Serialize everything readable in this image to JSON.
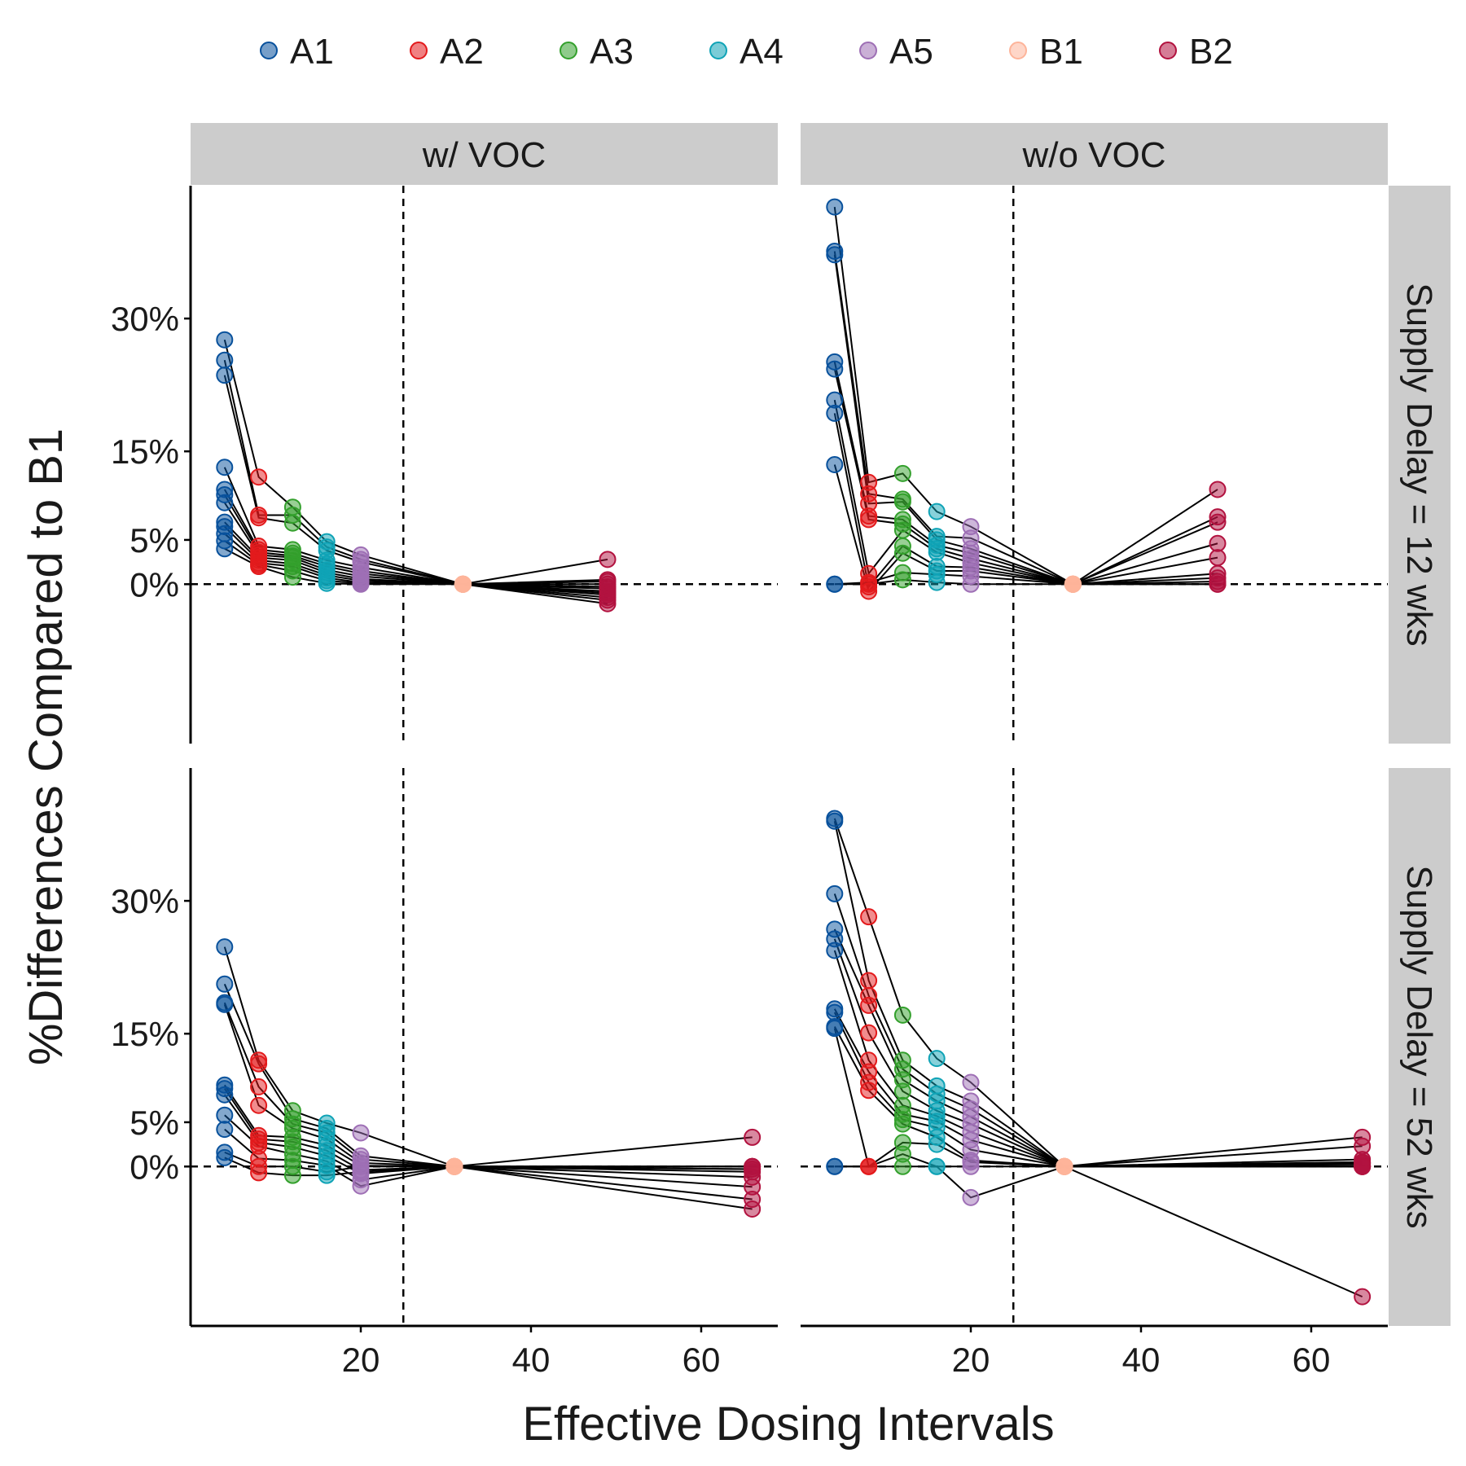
{
  "chart_data": {
    "type": "scatter",
    "xlabel": "Effective Dosing Intervals",
    "ylabel": "%Differences Compared to B1",
    "xlim": [
      0,
      69
    ],
    "ylim": [
      -18,
      45
    ],
    "x_ticks": [
      20,
      40,
      60
    ],
    "y_ticks": [
      0,
      5,
      15,
      30
    ],
    "y_tick_labels": [
      "0%",
      "5%",
      "15%",
      "30%"
    ],
    "reference_vline_x": 25,
    "reference_hline_y": 0,
    "legend_position": "top",
    "legend": [
      {
        "name": "A1",
        "color": "#08519c"
      },
      {
        "name": "A2",
        "color": "#e31a1c"
      },
      {
        "name": "A3",
        "color": "#33a02c"
      },
      {
        "name": "A4",
        "color": "#0fa3b6"
      },
      {
        "name": "A5",
        "color": "#9e6fb5"
      },
      {
        "name": "B1",
        "color": "#fdb49a"
      },
      {
        "name": "B2",
        "color": "#b2123f"
      }
    ],
    "col_strips": [
      "w/ VOC",
      "w/o VOC"
    ],
    "row_strips": [
      "Supply Delay = 12 wks",
      "Supply Delay = 52 wks"
    ],
    "panels": [
      {
        "col": "w/ VOC",
        "row": "Supply Delay = 12 wks",
        "x": {
          "A1": 4,
          "A2": 8,
          "A3": 12,
          "A4": 16,
          "A5": 20,
          "B1": 32,
          "B2": 49
        },
        "trajectories": [
          [
            27.6,
            12.1,
            8.7,
            4.8,
            3.3,
            0,
            2.8
          ],
          [
            25.3,
            7.8,
            7.8,
            4.2,
            2.8,
            0,
            0.5
          ],
          [
            23.6,
            7.5,
            6.9,
            3.8,
            2.5,
            0,
            -0.3
          ],
          [
            13.2,
            4.3,
            3.9,
            2.7,
            1.9,
            0,
            -1.0
          ],
          [
            10.7,
            3.9,
            3.5,
            2.3,
            1.5,
            0,
            -1.5
          ],
          [
            10.1,
            3.6,
            3.2,
            2.0,
            1.2,
            0,
            -2.2
          ],
          [
            9.2,
            3.3,
            3.0,
            1.6,
            0.9,
            0,
            0.0
          ],
          [
            7.0,
            3.0,
            2.7,
            1.3,
            0.6,
            0,
            -0.8
          ],
          [
            6.5,
            2.7,
            2.3,
            1.0,
            0.4,
            0,
            0.3
          ],
          [
            5.7,
            2.4,
            2.0,
            0.7,
            0.2,
            0,
            -0.5
          ],
          [
            4.9,
            2.2,
            1.5,
            0.4,
            0.1,
            0,
            -1.2
          ],
          [
            4.0,
            2.0,
            0.8,
            0.1,
            0.0,
            0,
            -1.8
          ]
        ]
      },
      {
        "col": "w/o VOC",
        "row": "Supply Delay = 12 wks",
        "x": {
          "A1": 4,
          "A2": 8,
          "A3": 12,
          "A4": 16,
          "A5": 20,
          "B1": 32,
          "B2": 49
        },
        "trajectories": [
          [
            42.6,
            11.5,
            12.5,
            8.2,
            6.5,
            0,
            10.7
          ],
          [
            37.6,
            10.2,
            9.6,
            5.4,
            5.2,
            0,
            7.6
          ],
          [
            37.2,
            9.1,
            9.3,
            5.0,
            4.0,
            0,
            7.0
          ],
          [
            25.1,
            7.7,
            7.3,
            4.4,
            3.5,
            0,
            4.6
          ],
          [
            24.3,
            7.3,
            6.8,
            4.0,
            2.9,
            0,
            3.0
          ],
          [
            20.8,
            1.2,
            6.1,
            3.6,
            2.4,
            0,
            1.2
          ],
          [
            19.3,
            -0.3,
            4.3,
            2.0,
            1.9,
            0,
            0.7
          ],
          [
            13.5,
            -0.8,
            3.5,
            1.5,
            1.5,
            0,
            0.3
          ],
          [
            0.0,
            0.2,
            1.3,
            1.1,
            0.9,
            0,
            0.0
          ],
          [
            0.0,
            0.0,
            0.5,
            0.2,
            0.0,
            0,
            0.0
          ]
        ]
      },
      {
        "col": "w/ VOC",
        "row": "Supply Delay = 52 wks",
        "x": {
          "A1": 4,
          "A2": 8,
          "A3": 12,
          "A4": 16,
          "A5": 20,
          "B1": 31,
          "B2": 66
        },
        "trajectories": [
          [
            24.8,
            12.0,
            6.3,
            4.9,
            3.8,
            0,
            3.3
          ],
          [
            20.6,
            11.6,
            5.4,
            4.3,
            1.2,
            0,
            0.0
          ],
          [
            18.5,
            9.0,
            4.8,
            3.8,
            0.8,
            0,
            -0.6
          ],
          [
            18.3,
            6.9,
            4.3,
            3.1,
            0.4,
            0,
            -2.3
          ],
          [
            9.2,
            3.5,
            3.3,
            2.4,
            0.1,
            0,
            -3.7
          ],
          [
            8.8,
            3.1,
            2.8,
            1.8,
            -0.4,
            0,
            -4.8
          ],
          [
            8.1,
            2.7,
            2.2,
            1.2,
            -0.8,
            0,
            -0.3
          ],
          [
            5.8,
            2.3,
            1.4,
            0.6,
            -1.5,
            0,
            0.0
          ],
          [
            4.2,
            0.9,
            0.7,
            0.1,
            -2.2,
            0,
            -1.2
          ],
          [
            1.6,
            0.0,
            0.0,
            -0.6,
            0.0,
            0,
            0.0
          ],
          [
            1.0,
            -0.7,
            -1.0,
            -1.0,
            -0.6,
            0,
            -0.3
          ]
        ]
      },
      {
        "col": "w/o VOC",
        "row": "Supply Delay = 52 wks",
        "x": {
          "A1": 4,
          "A2": 8,
          "A3": 12,
          "A4": 16,
          "A5": 20,
          "B1": 31,
          "B2": 66
        },
        "trajectories": [
          [
            39.3,
            28.2,
            17.1,
            12.2,
            9.5,
            0,
            3.3
          ],
          [
            39.0,
            21.0,
            12.0,
            9.1,
            7.4,
            0,
            2.3
          ],
          [
            30.8,
            19.3,
            11.0,
            8.2,
            6.5,
            0,
            0.8
          ],
          [
            26.8,
            18.2,
            9.8,
            7.4,
            5.6,
            0,
            0.5
          ],
          [
            25.7,
            15.1,
            8.5,
            6.3,
            4.8,
            0,
            0.0
          ],
          [
            24.4,
            12.0,
            6.9,
            5.7,
            3.9,
            0,
            -14.7
          ],
          [
            17.8,
            10.7,
            5.9,
            5.1,
            3.0,
            0,
            0.3
          ],
          [
            17.4,
            9.5,
            5.3,
            4.4,
            1.9,
            0,
            0.0
          ],
          [
            15.8,
            8.6,
            4.8,
            3.3,
            0.7,
            0,
            0.4
          ],
          [
            15.6,
            0.0,
            2.7,
            2.5,
            0.5,
            0,
            0.1
          ],
          [
            0.0,
            0.0,
            1.4,
            0.0,
            -3.5,
            0,
            0.0
          ],
          [
            0.0,
            0.0,
            0.0,
            0.0,
            0.0,
            0,
            0.0
          ]
        ]
      }
    ]
  }
}
